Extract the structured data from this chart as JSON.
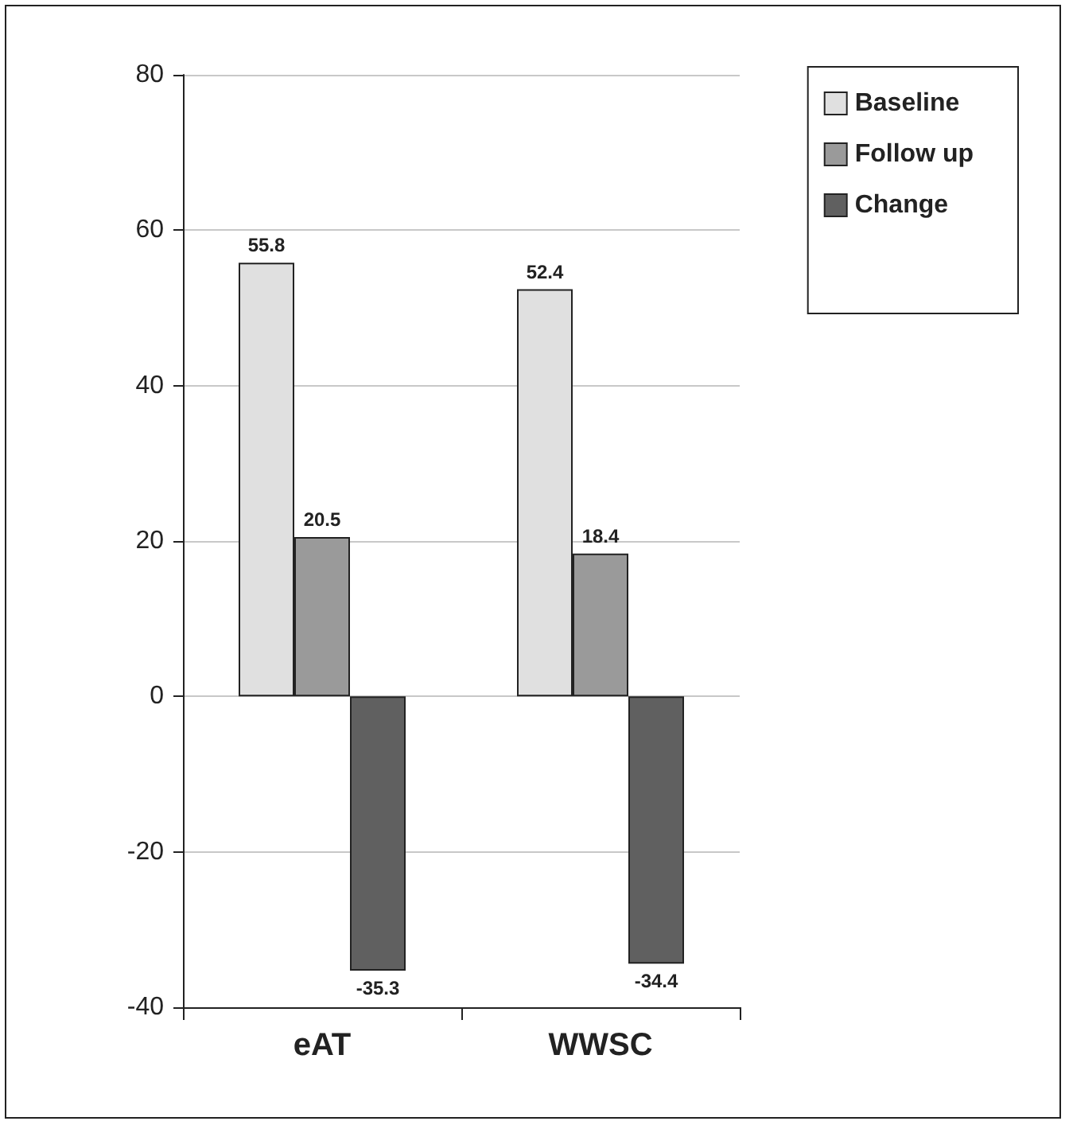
{
  "chart_data": {
    "type": "bar",
    "categories": [
      "eAT",
      "WWSC"
    ],
    "series": [
      {
        "name": "Baseline",
        "color": "#e0e0e0",
        "values": [
          55.8,
          52.4
        ]
      },
      {
        "name": "Follow up",
        "color": "#9a9a9a",
        "values": [
          20.5,
          18.4
        ]
      },
      {
        "name": "Change",
        "color": "#606060",
        "values": [
          -35.3,
          -34.4
        ]
      }
    ],
    "ylim": [
      -40,
      80
    ],
    "yticks": [
      -40,
      -20,
      0,
      20,
      40,
      60,
      80
    ],
    "grid": "y",
    "legend": "top right",
    "data_labels": true
  }
}
